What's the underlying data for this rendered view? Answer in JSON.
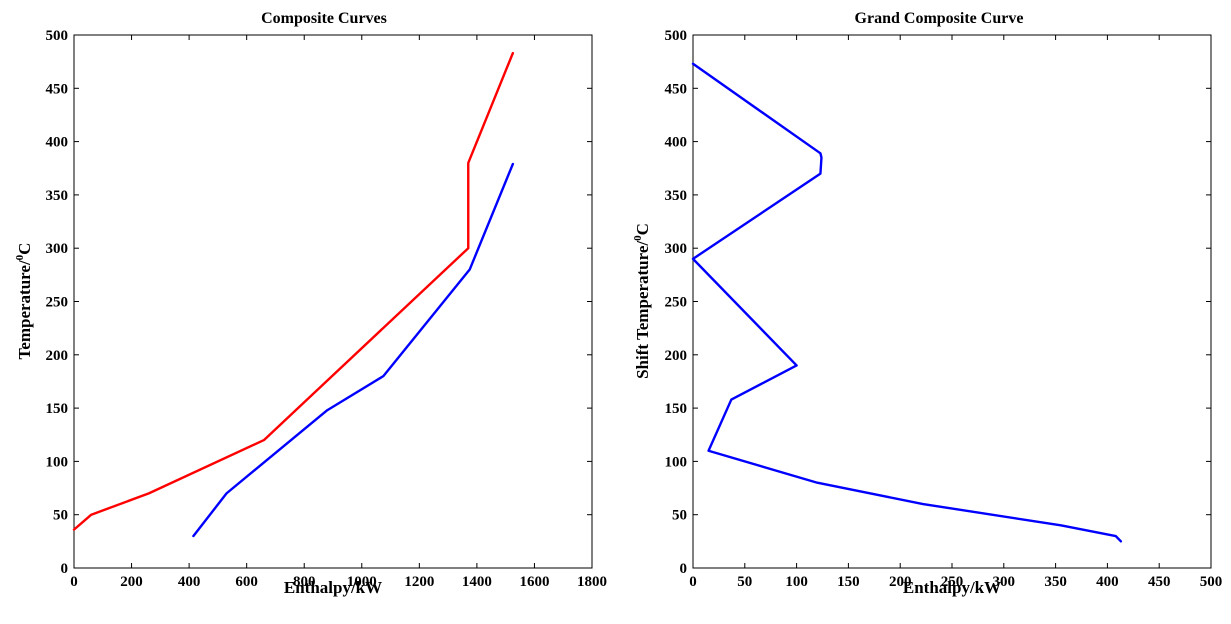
{
  "chart_data": [
    {
      "type": "line",
      "title": "Composite Curves",
      "xlabel": "Enthalpy/kW",
      "ylabel_main": "Temperature/",
      "ylabel_sup": "0",
      "ylabel_unit": "C",
      "xlim": [
        0,
        1800
      ],
      "ylim": [
        0,
        500
      ],
      "xticks": [
        0,
        200,
        400,
        600,
        800,
        1000,
        1200,
        1400,
        1600,
        1800
      ],
      "yticks": [
        0,
        50,
        100,
        150,
        200,
        250,
        300,
        350,
        400,
        450,
        500
      ],
      "series": [
        {
          "color": "#ff0000",
          "x": [
            0,
            60,
            260,
            660,
            1370,
            1370,
            1525
          ],
          "y": [
            36,
            50,
            70,
            120,
            300,
            380,
            483
          ]
        },
        {
          "color": "#0000ff",
          "x": [
            415,
            530,
            880,
            1075,
            1375,
            1525
          ],
          "y": [
            30,
            70,
            148,
            180,
            280,
            379
          ]
        }
      ]
    },
    {
      "type": "line",
      "title": "Grand Composite Curve",
      "xlabel": "Enthalpy/kW",
      "ylabel_main": "Shift Temperature/",
      "ylabel_sup": "0",
      "ylabel_unit": "C",
      "xlim": [
        0,
        500
      ],
      "ylim": [
        0,
        500
      ],
      "xticks": [
        0,
        50,
        100,
        150,
        200,
        250,
        300,
        350,
        400,
        450,
        500
      ],
      "yticks": [
        0,
        50,
        100,
        150,
        200,
        250,
        300,
        350,
        400,
        450,
        500
      ],
      "series": [
        {
          "color": "#0000ff",
          "x": [
            0,
            123,
            124,
            123,
            0,
            100,
            37,
            15,
            120,
            222,
            355,
            408,
            413
          ],
          "y": [
            473,
            389,
            385,
            370,
            290,
            190,
            158,
            110,
            80,
            60,
            40,
            30,
            25
          ]
        }
      ]
    }
  ]
}
